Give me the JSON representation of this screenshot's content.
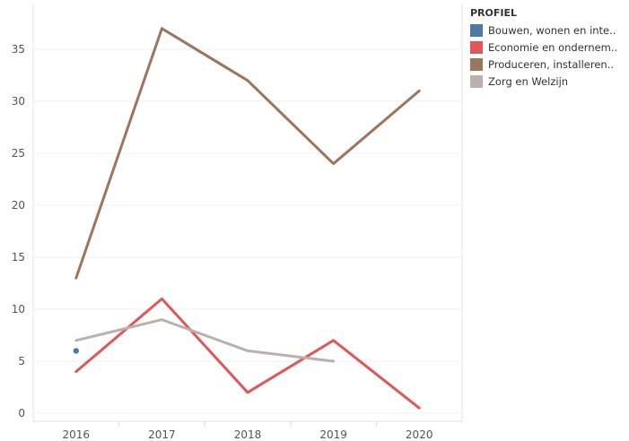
{
  "chart_data": {
    "type": "line",
    "x": [
      "2016",
      "2017",
      "2018",
      "2019",
      "2020"
    ],
    "yticks": [
      0,
      5,
      10,
      15,
      20,
      25,
      30,
      35
    ],
    "ylim": [
      -0.5,
      38.5
    ],
    "grid": true,
    "legend_position": "top-right",
    "legend_title": "PROFIEL",
    "series": [
      {
        "name": "Bouwen, wonen en inte..",
        "color": "#4e79a7",
        "values": [
          6,
          null,
          null,
          null,
          null
        ]
      },
      {
        "name": "Economie en ondernem..",
        "color": "#e15759",
        "values": [
          4,
          11,
          2,
          7,
          0.5
        ]
      },
      {
        "name": "Produceren, installeren..",
        "color": "#9c755f",
        "values": [
          13,
          37,
          32,
          24,
          31
        ]
      },
      {
        "name": "Zorg en Welzijn",
        "color": "#bab0ac",
        "values": [
          7,
          9,
          6,
          5,
          null
        ]
      }
    ]
  }
}
